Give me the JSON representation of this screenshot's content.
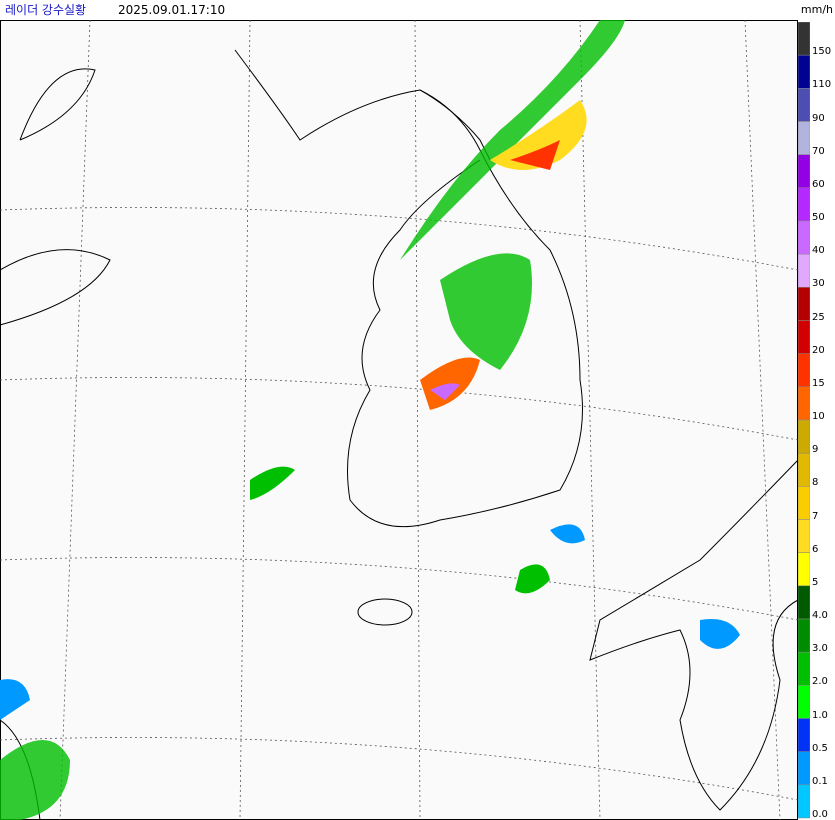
{
  "header": {
    "title": "레이더 강수실황",
    "time": "2025.09.01.17:10",
    "unit": "mm/h"
  },
  "legend": [
    {
      "label": "150",
      "color": "#333333"
    },
    {
      "label": "110",
      "color": "#000390"
    },
    {
      "label": "90",
      "color": "#4c4eb1"
    },
    {
      "label": "70",
      "color": "#b3b4de"
    },
    {
      "label": "60",
      "color": "#9300e4"
    },
    {
      "label": "50",
      "color": "#b329ff"
    },
    {
      "label": "40",
      "color": "#c969ff"
    },
    {
      "label": "30",
      "color": "#e0a9ff"
    },
    {
      "label": "25",
      "color": "#b40000"
    },
    {
      "label": "20",
      "color": "#d20000"
    },
    {
      "label": "15",
      "color": "#ff3200"
    },
    {
      "label": "10",
      "color": "#ff6600"
    },
    {
      "label": "9",
      "color": "#ccaa00"
    },
    {
      "label": "8",
      "color": "#e0b900"
    },
    {
      "label": "7",
      "color": "#f9cd00"
    },
    {
      "label": "6",
      "color": "#ffdc1f"
    },
    {
      "label": "5",
      "color": "#ffff00"
    },
    {
      "label": "4.0",
      "color": "#005a00"
    },
    {
      "label": "3.0",
      "color": "#008c00"
    },
    {
      "label": "2.0",
      "color": "#00be00"
    },
    {
      "label": "1.0",
      "color": "#00ff00"
    },
    {
      "label": "0.5",
      "color": "#0033f5"
    },
    {
      "label": "0.1",
      "color": "#0099ff"
    },
    {
      "label": "0.0",
      "color": "#00c8ff"
    }
  ]
}
